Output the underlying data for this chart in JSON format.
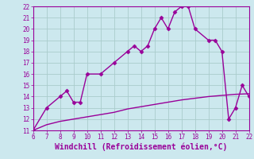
{
  "x_main": [
    6,
    7,
    8,
    8.5,
    9,
    9.5,
    10,
    11,
    12,
    13,
    13.5,
    14,
    14.5,
    15,
    15.5,
    16,
    16.5,
    17,
    17.5,
    18,
    19,
    19.5,
    20,
    20.5,
    21,
    21.5,
    22
  ],
  "y_main": [
    11,
    13,
    14,
    14.5,
    13.5,
    13.5,
    16,
    16,
    17,
    18,
    18.5,
    18,
    18.5,
    20,
    21,
    20,
    21.5,
    22,
    22,
    20,
    19,
    19,
    18,
    12,
    13,
    15,
    14
  ],
  "x_line2": [
    6,
    7,
    8,
    9,
    10,
    11,
    12,
    13,
    14,
    15,
    16,
    17,
    18,
    19,
    20,
    21,
    22
  ],
  "y_line2": [
    11,
    11.5,
    11.8,
    12.0,
    12.2,
    12.4,
    12.6,
    12.9,
    13.1,
    13.3,
    13.5,
    13.7,
    13.85,
    14.0,
    14.1,
    14.2,
    14.25
  ],
  "line_color": "#990099",
  "bg_color": "#cce8ee",
  "grid_color": "#aacccc",
  "xlim": [
    6,
    22
  ],
  "ylim": [
    11,
    22
  ],
  "xticks": [
    6,
    7,
    8,
    9,
    10,
    11,
    12,
    13,
    14,
    15,
    16,
    17,
    18,
    19,
    20,
    21,
    22
  ],
  "yticks": [
    11,
    12,
    13,
    14,
    15,
    16,
    17,
    18,
    19,
    20,
    21,
    22
  ],
  "xlabel": "Windchill (Refroidissement éolien,°C)",
  "marker": "D",
  "marker_size": 2.5,
  "linewidth": 1.0,
  "tick_fontsize": 5.5,
  "label_fontsize": 7.0
}
